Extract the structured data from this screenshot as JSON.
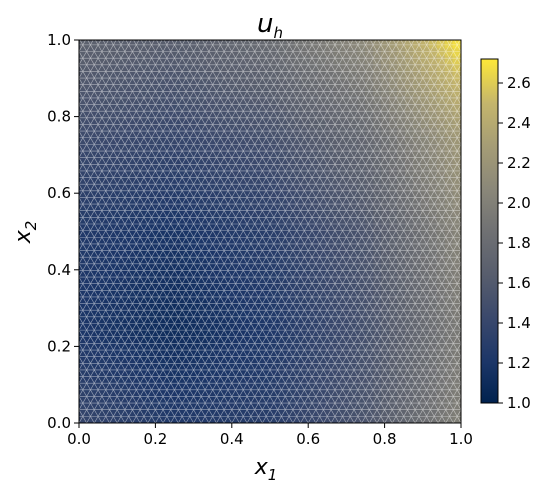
{
  "chart_data": {
    "type": "heatmap",
    "title": "u",
    "title_subscript": "h",
    "xlabel": "x",
    "xlabel_subscript": "1",
    "ylabel": "x",
    "ylabel_subscript": "2",
    "xlim": [
      0.0,
      1.0
    ],
    "ylim": [
      0.0,
      1.0
    ],
    "xticks": [
      "0.0",
      "0.2",
      "0.4",
      "0.6",
      "0.8",
      "1.0"
    ],
    "yticks": [
      "0.0",
      "0.2",
      "0.4",
      "0.6",
      "0.8",
      "1.0"
    ],
    "colorbar": {
      "min": 1.0,
      "max": 2.72,
      "ticks": [
        "1.0",
        "1.2",
        "1.4",
        "1.6",
        "1.8",
        "2.0",
        "2.2",
        "2.4",
        "2.6"
      ],
      "tick_values": [
        1.0,
        1.2,
        1.4,
        1.6,
        1.8,
        2.0,
        2.2,
        2.4,
        2.6
      ],
      "colormap": "cividis",
      "placement": "right"
    },
    "grid": false,
    "field_samples": {
      "x": [
        0.0,
        0.25,
        0.5,
        0.75,
        1.0
      ],
      "y": [
        0.0,
        0.25,
        0.5,
        0.75,
        1.0
      ],
      "values": [
        [
          1.4,
          1.25,
          1.3,
          1.55,
          2.0
        ],
        [
          1.2,
          1.1,
          1.22,
          1.5,
          1.95
        ],
        [
          1.25,
          1.18,
          1.3,
          1.55,
          2.05
        ],
        [
          1.45,
          1.4,
          1.5,
          1.75,
          2.25
        ],
        [
          1.7,
          1.65,
          1.8,
          2.1,
          2.72
        ]
      ]
    },
    "mesh": "triangular"
  },
  "colors": {
    "cmap_low": "#00224e",
    "cmap_mid": "#7c7b78",
    "cmap_high": "#fee838",
    "mesh_lines": "#ffffff"
  }
}
